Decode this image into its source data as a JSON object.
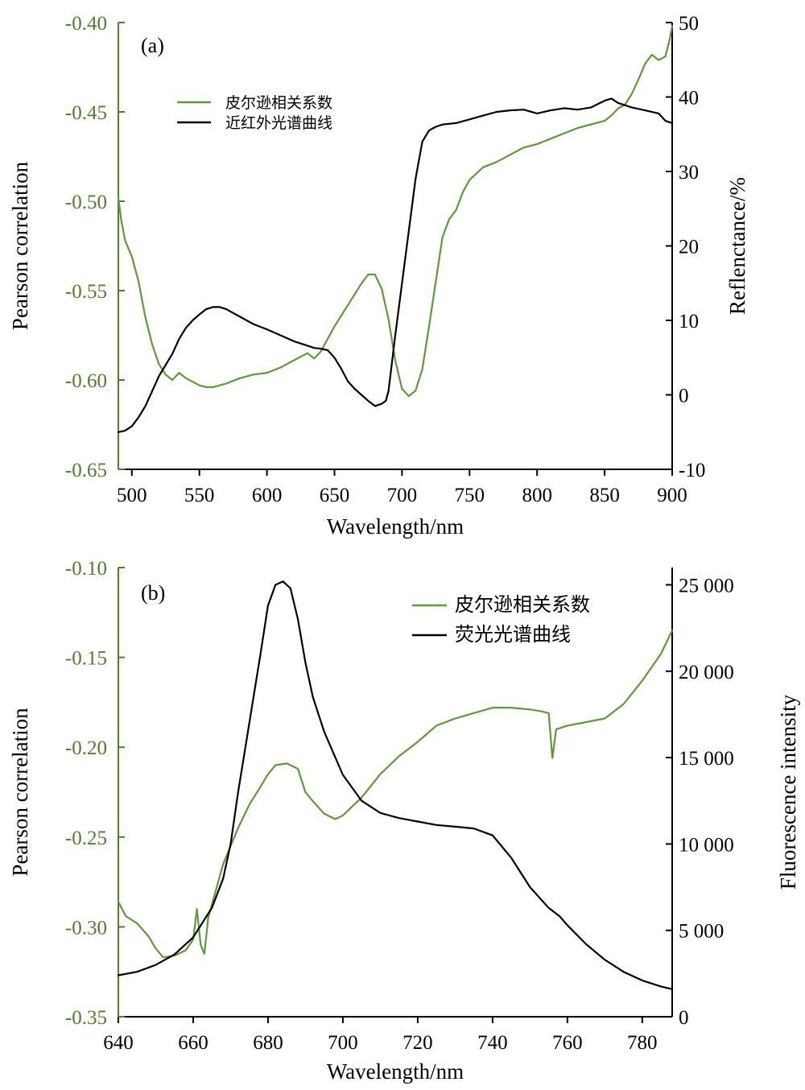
{
  "chart_data": [
    {
      "panel_label": "(a)",
      "type": "line",
      "xlabel": "Wavelength/nm",
      "ylabel_left": "Pearson correlation",
      "ylabel_right": "Reflenctance/%",
      "xlim": [
        490,
        900
      ],
      "ylim_left": [
        -0.65,
        -0.4
      ],
      "ylim_right": [
        -10,
        50
      ],
      "x_ticks": [
        "500",
        "550",
        "600",
        "650",
        "700",
        "750",
        "800",
        "850",
        "900"
      ],
      "x_tick_values": [
        500,
        550,
        600,
        650,
        700,
        750,
        800,
        850,
        900
      ],
      "y_left_ticks": [
        "-0.40",
        "-0.45",
        "-0.50",
        "-0.55",
        "-0.60",
        "-0.65"
      ],
      "y_left_tick_values": [
        -0.4,
        -0.45,
        -0.5,
        -0.55,
        -0.6,
        -0.65
      ],
      "y_right_ticks": [
        "50",
        "40",
        "30",
        "20",
        "10",
        "0",
        "-10"
      ],
      "y_right_tick_values": [
        50,
        40,
        30,
        20,
        10,
        0,
        -10
      ],
      "legend_position": "upper-left",
      "series": [
        {
          "name": "皮尔逊相关系数",
          "axis": "left",
          "color": "#5e9a3a",
          "x": [
            490,
            492,
            495,
            500,
            505,
            510,
            515,
            520,
            525,
            530,
            535,
            540,
            545,
            550,
            555,
            560,
            570,
            580,
            590,
            600,
            610,
            620,
            630,
            635,
            640,
            645,
            650,
            655,
            660,
            665,
            670,
            675,
            680,
            685,
            690,
            695,
            700,
            705,
            710,
            715,
            720,
            725,
            730,
            735,
            740,
            745,
            750,
            760,
            770,
            780,
            790,
            800,
            810,
            820,
            830,
            840,
            850,
            855,
            860,
            865,
            870,
            875,
            880,
            885,
            890,
            895,
            898,
            900
          ],
          "values": [
            -0.498,
            -0.51,
            -0.522,
            -0.531,
            -0.545,
            -0.565,
            -0.58,
            -0.591,
            -0.597,
            -0.6,
            -0.596,
            -0.599,
            -0.601,
            -0.603,
            -0.604,
            -0.604,
            -0.602,
            -0.599,
            -0.597,
            -0.596,
            -0.593,
            -0.589,
            -0.585,
            -0.588,
            -0.584,
            -0.577,
            -0.57,
            -0.564,
            -0.558,
            -0.552,
            -0.546,
            -0.541,
            -0.541,
            -0.549,
            -0.566,
            -0.589,
            -0.605,
            -0.609,
            -0.606,
            -0.594,
            -0.57,
            -0.545,
            -0.52,
            -0.51,
            -0.505,
            -0.495,
            -0.488,
            -0.481,
            -0.478,
            -0.474,
            -0.47,
            -0.468,
            -0.465,
            -0.462,
            -0.459,
            -0.457,
            -0.455,
            -0.452,
            -0.448,
            -0.446,
            -0.44,
            -0.432,
            -0.423,
            -0.418,
            -0.421,
            -0.419,
            -0.41,
            -0.402
          ]
        },
        {
          "name": "近红外光谱曲线",
          "axis": "right",
          "color": "#000000",
          "x": [
            490,
            495,
            500,
            505,
            510,
            515,
            520,
            525,
            530,
            535,
            540,
            545,
            550,
            555,
            560,
            565,
            570,
            575,
            580,
            585,
            590,
            600,
            610,
            620,
            630,
            635,
            640,
            645,
            650,
            655,
            660,
            665,
            670,
            675,
            680,
            685,
            688,
            690,
            695,
            700,
            705,
            710,
            715,
            720,
            725,
            730,
            740,
            750,
            760,
            770,
            780,
            790,
            800,
            810,
            820,
            830,
            840,
            850,
            855,
            860,
            870,
            880,
            890,
            895,
            900
          ],
          "values": [
            -5,
            -4.8,
            -4.2,
            -3,
            -1.5,
            0.5,
            2.5,
            4,
            5.5,
            7.5,
            9,
            10,
            10.8,
            11.5,
            11.8,
            11.8,
            11.5,
            11,
            10.5,
            10,
            9.5,
            8.8,
            8,
            7.2,
            6.6,
            6.3,
            6.2,
            6,
            5,
            3.5,
            1.8,
            0.8,
            0,
            -0.8,
            -1.5,
            -1.2,
            -0.8,
            0.5,
            8,
            15,
            22,
            29,
            34,
            35.5,
            36,
            36.3,
            36.5,
            37,
            37.5,
            38,
            38.2,
            38.3,
            37.8,
            38.2,
            38.5,
            38.3,
            38.6,
            39.5,
            39.8,
            39.2,
            38.6,
            38.2,
            37.8,
            36.8,
            36.5
          ]
        }
      ]
    },
    {
      "panel_label": "(b)",
      "type": "line",
      "xlabel": "Wavelength/nm",
      "ylabel_left": "Pearson correlation",
      "ylabel_right": "Fluorescence intensity",
      "xlim": [
        640,
        788
      ],
      "ylim_left": [
        -0.35,
        -0.1
      ],
      "ylim_right": [
        0,
        26000
      ],
      "x_ticks": [
        "640",
        "660",
        "680",
        "700",
        "720",
        "740",
        "760",
        "780"
      ],
      "x_tick_values": [
        640,
        660,
        680,
        700,
        720,
        740,
        760,
        780
      ],
      "y_left_ticks": [
        "-0.10",
        "-0.15",
        "-0.20",
        "-0.25",
        "-0.30",
        "-0.35"
      ],
      "y_left_tick_values": [
        -0.1,
        -0.15,
        -0.2,
        -0.25,
        -0.3,
        -0.35
      ],
      "y_right_ticks": [
        "25 000",
        "20 000",
        "15 000",
        "10 000",
        "5 000",
        "0"
      ],
      "y_right_tick_values": [
        25000,
        20000,
        15000,
        10000,
        5000,
        0
      ],
      "legend_position": "upper-right",
      "series": [
        {
          "name": "皮尔逊相关系数",
          "axis": "left",
          "color": "#5e9a3a",
          "x": [
            640,
            642,
            645,
            648,
            650,
            652,
            655,
            658,
            660,
            661,
            662,
            663,
            664,
            666,
            668,
            670,
            672,
            675,
            678,
            680,
            682,
            685,
            688,
            690,
            692,
            695,
            698,
            700,
            705,
            710,
            715,
            720,
            725,
            730,
            735,
            740,
            745,
            750,
            753,
            755,
            756,
            757,
            760,
            765,
            770,
            775,
            780,
            785,
            788
          ],
          "values": [
            -0.286,
            -0.294,
            -0.298,
            -0.305,
            -0.312,
            -0.317,
            -0.316,
            -0.313,
            -0.307,
            -0.29,
            -0.31,
            -0.315,
            -0.295,
            -0.28,
            -0.265,
            -0.255,
            -0.245,
            -0.232,
            -0.222,
            -0.215,
            -0.21,
            -0.209,
            -0.212,
            -0.225,
            -0.23,
            -0.237,
            -0.24,
            -0.238,
            -0.228,
            -0.215,
            -0.205,
            -0.197,
            -0.188,
            -0.184,
            -0.181,
            -0.178,
            -0.178,
            -0.179,
            -0.18,
            -0.181,
            -0.206,
            -0.19,
            -0.188,
            -0.186,
            -0.184,
            -0.176,
            -0.163,
            -0.148,
            -0.135
          ]
        },
        {
          "name": "荧光光谱曲线",
          "axis": "right",
          "color": "#000000",
          "x": [
            640,
            645,
            650,
            655,
            660,
            665,
            668,
            670,
            672,
            675,
            678,
            680,
            682,
            684,
            686,
            688,
            690,
            692,
            695,
            700,
            705,
            710,
            715,
            720,
            725,
            730,
            735,
            740,
            745,
            750,
            755,
            758,
            760,
            765,
            770,
            775,
            780,
            785,
            788
          ],
          "values": [
            2400,
            2600,
            3000,
            3600,
            4600,
            6300,
            8000,
            10000,
            13000,
            17000,
            21000,
            23800,
            25000,
            25200,
            24800,
            23000,
            20500,
            18500,
            16500,
            14000,
            12500,
            11800,
            11500,
            11300,
            11100,
            11000,
            10900,
            10500,
            9200,
            7500,
            6300,
            5800,
            5300,
            4200,
            3300,
            2600,
            2100,
            1750,
            1600
          ]
        }
      ]
    }
  ]
}
